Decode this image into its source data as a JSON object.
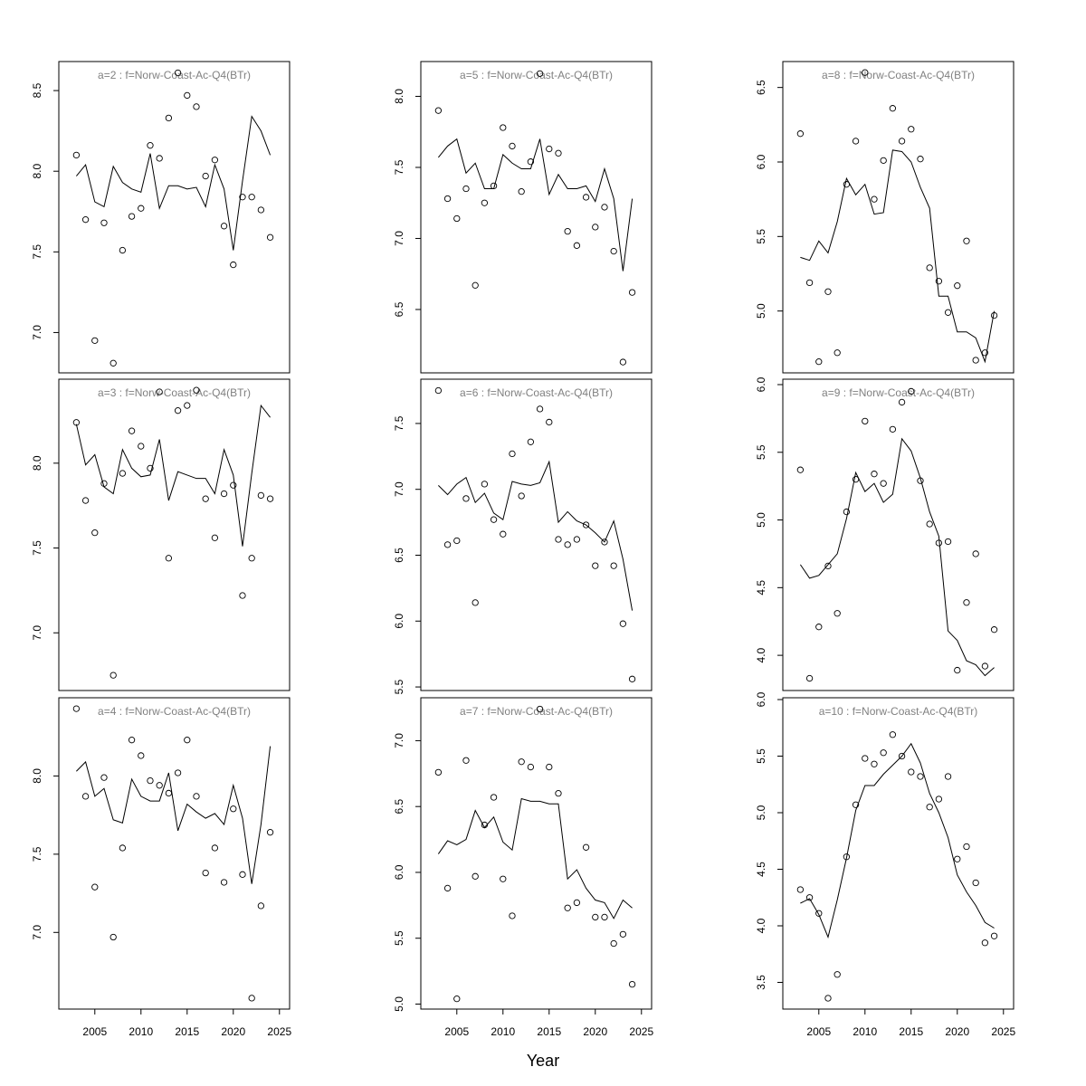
{
  "xlabel": "Year",
  "chart_data": [
    {
      "type": "line",
      "title": "a=2  :  f=Norw-Coast-Ac-Q4(BTr)",
      "x": [
        2003,
        2004,
        2005,
        2006,
        2007,
        2008,
        2009,
        2010,
        2011,
        2012,
        2013,
        2014,
        2015,
        2016,
        2017,
        2018,
        2019,
        2020,
        2021,
        2022,
        2023,
        2024
      ],
      "series": [
        {
          "style": "line",
          "color": "#000000",
          "values": [
            7.97,
            8.04,
            7.81,
            7.78,
            8.03,
            7.93,
            7.89,
            7.87,
            8.11,
            7.77,
            7.91,
            7.91,
            7.89,
            7.9,
            7.78,
            8.04,
            7.89,
            7.51,
            7.94,
            8.34,
            8.25,
            8.1
          ]
        },
        {
          "style": "points",
          "color": "#000000",
          "values": [
            8.1,
            7.7,
            6.95,
            7.68,
            6.81,
            7.51,
            7.72,
            7.77,
            8.16,
            8.08,
            8.33,
            8.61,
            8.47,
            8.4,
            7.97,
            8.07,
            7.66,
            7.42,
            7.84,
            7.84,
            7.76,
            7.59
          ]
        }
      ],
      "xlim": [
        2001.1,
        2026.1
      ],
      "ylim": [
        6.75,
        8.68
      ],
      "yticks": [
        {
          "value": 7,
          "label": "7.0"
        },
        7.5,
        {
          "value": 8,
          "label": "8.0"
        },
        8.5
      ]
    },
    {
      "type": "line",
      "title": "a=3  :  f=Norw-Coast-Ac-Q4(BTr)",
      "x": [
        2003,
        2004,
        2005,
        2006,
        2007,
        2008,
        2009,
        2010,
        2011,
        2012,
        2013,
        2014,
        2015,
        2016,
        2017,
        2018,
        2019,
        2020,
        2021,
        2022,
        2023,
        2024
      ],
      "series": [
        {
          "style": "line",
          "color": "#000000",
          "values": [
            8.23,
            7.99,
            8.05,
            7.86,
            7.82,
            8.08,
            7.97,
            7.92,
            7.93,
            8.14,
            7.78,
            7.95,
            7.93,
            7.91,
            7.91,
            7.82,
            8.08,
            7.93,
            7.51,
            7.94,
            8.34,
            8.27
          ]
        },
        {
          "style": "points",
          "color": "#000000",
          "values": [
            8.24,
            7.78,
            7.59,
            7.88,
            6.75,
            7.94,
            8.19,
            8.1,
            7.97,
            8.42,
            7.44,
            8.31,
            8.34,
            8.43,
            7.79,
            7.56,
            7.82,
            7.87,
            7.22,
            7.44,
            7.81,
            7.79
          ]
        }
      ],
      "xlim": [
        2001.1,
        2026.1
      ],
      "ylim": [
        6.66,
        8.495
      ],
      "yticks": [
        {
          "value": 7,
          "label": "7.0"
        },
        7.5,
        {
          "value": 8,
          "label": "8.0"
        }
      ]
    },
    {
      "type": "line",
      "title": "a=4  :  f=Norw-Coast-Ac-Q4(BTr)",
      "x": [
        2003,
        2004,
        2005,
        2006,
        2007,
        2008,
        2009,
        2010,
        2011,
        2012,
        2013,
        2014,
        2015,
        2016,
        2017,
        2018,
        2019,
        2020,
        2021,
        2022,
        2023,
        2024
      ],
      "series": [
        {
          "style": "line",
          "color": "#000000",
          "values": [
            8.03,
            8.09,
            7.87,
            7.92,
            7.72,
            7.7,
            7.98,
            7.87,
            7.84,
            7.84,
            8.02,
            7.65,
            7.82,
            7.77,
            7.73,
            7.76,
            7.69,
            7.94,
            7.73,
            7.31,
            7.69,
            8.19
          ]
        },
        {
          "style": "points",
          "color": "#000000",
          "values": [
            8.43,
            7.87,
            7.29,
            7.99,
            6.97,
            7.54,
            8.23,
            8.13,
            7.97,
            7.94,
            7.89,
            8.02,
            8.23,
            7.87,
            7.38,
            7.54,
            7.32,
            7.79,
            7.37,
            6.58,
            7.17,
            7.64
          ]
        }
      ],
      "xlim": [
        2001.1,
        2026.1
      ],
      "ylim": [
        6.51,
        8.5
      ],
      "xticks": [
        2005,
        2010,
        2015,
        2020,
        2025
      ],
      "yticks": [
        {
          "value": 7,
          "label": "7.0"
        },
        7.5,
        {
          "value": 8,
          "label": "8.0"
        }
      ]
    },
    {
      "type": "line",
      "title": "a=5  :  f=Norw-Coast-Ac-Q4(BTr)",
      "x": [
        2003,
        2004,
        2005,
        2006,
        2007,
        2008,
        2009,
        2010,
        2011,
        2012,
        2013,
        2014,
        2015,
        2016,
        2017,
        2018,
        2019,
        2020,
        2021,
        2022,
        2023,
        2024
      ],
      "series": [
        {
          "style": "line",
          "color": "#000000",
          "values": [
            7.57,
            7.65,
            7.7,
            7.46,
            7.53,
            7.35,
            7.35,
            7.59,
            7.53,
            7.49,
            7.49,
            7.7,
            7.31,
            7.45,
            7.35,
            7.35,
            7.37,
            7.26,
            7.49,
            7.28,
            6.77,
            7.28
          ]
        },
        {
          "style": "points",
          "color": "#000000",
          "values": [
            7.9,
            7.28,
            7.14,
            7.35,
            6.67,
            7.25,
            7.37,
            7.78,
            7.65,
            7.33,
            7.54,
            8.16,
            7.63,
            7.6,
            7.05,
            6.95,
            7.29,
            7.08,
            7.22,
            6.91,
            6.13,
            6.62
          ]
        }
      ],
      "xlim": [
        2001.1,
        2026.1
      ],
      "ylim": [
        6.054,
        8.245
      ],
      "yticks": [
        6.5,
        {
          "value": 7,
          "label": "7.0"
        },
        7.5,
        {
          "value": 8,
          "label": "8.0"
        }
      ]
    },
    {
      "type": "line",
      "title": "a=6  :  f=Norw-Coast-Ac-Q4(BTr)",
      "x": [
        2003,
        2004,
        2005,
        2006,
        2007,
        2008,
        2009,
        2010,
        2011,
        2012,
        2013,
        2014,
        2015,
        2016,
        2017,
        2018,
        2019,
        2020,
        2021,
        2022,
        2023,
        2024
      ],
      "series": [
        {
          "style": "line",
          "color": "#000000",
          "values": [
            7.03,
            6.96,
            7.04,
            7.09,
            6.9,
            6.97,
            6.82,
            6.77,
            7.06,
            7.04,
            7.03,
            7.05,
            7.21,
            6.75,
            6.83,
            6.76,
            6.73,
            6.67,
            6.6,
            6.76,
            6.47,
            6.08
          ]
        },
        {
          "style": "points",
          "color": "#000000",
          "values": [
            7.75,
            6.58,
            6.61,
            6.93,
            6.14,
            7.04,
            6.77,
            6.66,
            7.27,
            6.95,
            7.36,
            7.61,
            7.51,
            6.62,
            6.58,
            6.62,
            6.73,
            6.42,
            6.6,
            6.42,
            5.98,
            5.56
          ]
        }
      ],
      "xlim": [
        2001.1,
        2026.1
      ],
      "ylim": [
        5.473,
        7.836
      ],
      "yticks": [
        5.5,
        {
          "value": 6,
          "label": "6.0"
        },
        6.5,
        {
          "value": 7,
          "label": "7.0"
        },
        7.5
      ]
    },
    {
      "type": "line",
      "title": "a=7  :  f=Norw-Coast-Ac-Q4(BTr)",
      "x": [
        2003,
        2004,
        2005,
        2006,
        2007,
        2008,
        2009,
        2010,
        2011,
        2012,
        2013,
        2014,
        2015,
        2016,
        2017,
        2018,
        2019,
        2020,
        2021,
        2022,
        2023,
        2024
      ],
      "series": [
        {
          "style": "line",
          "color": "#000000",
          "values": [
            6.14,
            6.24,
            6.21,
            6.25,
            6.47,
            6.34,
            6.42,
            6.23,
            6.17,
            6.56,
            6.54,
            6.54,
            6.52,
            6.52,
            5.95,
            6.02,
            5.88,
            5.79,
            5.77,
            5.65,
            5.79,
            5.73
          ]
        },
        {
          "style": "points",
          "color": "#000000",
          "values": [
            6.76,
            5.88,
            5.04,
            6.85,
            5.97,
            6.36,
            6.57,
            5.95,
            5.67,
            6.84,
            6.8,
            7.24,
            6.8,
            6.6,
            5.73,
            5.77,
            6.19,
            5.66,
            5.66,
            5.46,
            5.53,
            5.15
          ]
        }
      ],
      "xlim": [
        2001.1,
        2026.1
      ],
      "ylim": [
        4.962,
        7.326
      ],
      "xticks": [
        2005,
        2010,
        2015,
        2020,
        2025
      ],
      "yticks": [
        {
          "value": 5,
          "label": "5.0"
        },
        5.5,
        {
          "value": 6,
          "label": "6.0"
        },
        6.5,
        {
          "value": 7,
          "label": "7.0"
        }
      ]
    },
    {
      "type": "line",
      "title": "a=8  :  f=Norw-Coast-Ac-Q4(BTr)",
      "x": [
        2003,
        2004,
        2005,
        2006,
        2007,
        2008,
        2009,
        2010,
        2011,
        2012,
        2013,
        2014,
        2015,
        2016,
        2017,
        2018,
        2019,
        2020,
        2021,
        2022,
        2023,
        2024
      ],
      "series": [
        {
          "style": "line",
          "color": "#000000",
          "values": [
            5.36,
            5.34,
            5.47,
            5.39,
            5.6,
            5.89,
            5.78,
            5.85,
            5.65,
            5.66,
            6.08,
            6.07,
            6.0,
            5.83,
            5.69,
            5.1,
            5.1,
            4.86,
            4.86,
            4.82,
            4.66,
            5.0
          ]
        },
        {
          "style": "points",
          "color": "#000000",
          "values": [
            6.19,
            5.19,
            4.66,
            5.13,
            4.72,
            5.85,
            6.14,
            6.6,
            5.75,
            6.01,
            6.36,
            6.14,
            6.22,
            6.02,
            5.29,
            5.2,
            4.99,
            5.17,
            5.47,
            4.67,
            4.72,
            4.97
          ]
        }
      ],
      "xlim": [
        2001.1,
        2026.1
      ],
      "ylim": [
        4.585,
        6.674
      ],
      "yticks": [
        {
          "value": 5,
          "label": "5.0"
        },
        5.5,
        {
          "value": 6,
          "label": "6.0"
        },
        6.5
      ]
    },
    {
      "type": "line",
      "title": "a=9  :  f=Norw-Coast-Ac-Q4(BTr)",
      "x": [
        2003,
        2004,
        2005,
        2006,
        2007,
        2008,
        2009,
        2010,
        2011,
        2012,
        2013,
        2014,
        2015,
        2016,
        2017,
        2018,
        2019,
        2020,
        2021,
        2022,
        2023,
        2024
      ],
      "series": [
        {
          "style": "line",
          "color": "#000000",
          "values": [
            4.67,
            4.57,
            4.59,
            4.67,
            4.75,
            5.01,
            5.35,
            5.21,
            5.27,
            5.13,
            5.19,
            5.6,
            5.51,
            5.31,
            5.06,
            4.88,
            4.18,
            4.11,
            3.96,
            3.93,
            3.85,
            3.91
          ]
        },
        {
          "style": "points",
          "color": "#000000",
          "values": [
            5.37,
            3.83,
            4.21,
            4.66,
            4.31,
            5.06,
            5.3,
            5.73,
            5.34,
            5.27,
            5.67,
            5.87,
            5.95,
            5.29,
            4.97,
            4.83,
            4.84,
            3.89,
            4.39,
            4.75,
            3.92,
            4.19
          ]
        }
      ],
      "xlim": [
        2001.1,
        2026.1
      ],
      "ylim": [
        3.74,
        6.04
      ],
      "yticks": [
        {
          "value": 4,
          "label": "4.0"
        },
        4.5,
        {
          "value": 5,
          "label": "5.0"
        },
        5.5,
        {
          "value": 6,
          "label": "6.0"
        }
      ]
    },
    {
      "type": "line",
      "title": "a=10  :  f=Norw-Coast-Ac-Q4(BTr)",
      "x": [
        2003,
        2004,
        2005,
        2006,
        2007,
        2008,
        2009,
        2010,
        2011,
        2012,
        2013,
        2014,
        2015,
        2016,
        2017,
        2018,
        2019,
        2020,
        2021,
        2022,
        2023,
        2024
      ],
      "series": [
        {
          "style": "line",
          "color": "#000000",
          "values": [
            4.2,
            4.24,
            4.1,
            3.9,
            4.23,
            4.6,
            5.02,
            5.24,
            5.24,
            5.34,
            5.42,
            5.5,
            5.61,
            5.44,
            5.17,
            5.0,
            4.78,
            4.45,
            4.3,
            4.18,
            4.03,
            3.98
          ]
        },
        {
          "style": "points",
          "color": "#000000",
          "values": [
            4.32,
            4.25,
            4.11,
            3.36,
            3.57,
            4.61,
            5.07,
            5.48,
            5.43,
            5.53,
            5.69,
            5.5,
            5.36,
            5.32,
            5.05,
            5.12,
            5.32,
            4.59,
            4.7,
            4.38,
            3.85,
            3.91
          ]
        }
      ],
      "xlim": [
        2001.1,
        2026.1
      ],
      "ylim": [
        3.264,
        6.016
      ],
      "xticks": [
        2005,
        2010,
        2015,
        2020,
        2025
      ],
      "yticks": [
        3.5,
        {
          "value": 4,
          "label": "4.0"
        },
        4.5,
        {
          "value": 5,
          "label": "5.0"
        },
        5.5,
        {
          "value": 6,
          "label": "6.0"
        }
      ]
    }
  ]
}
